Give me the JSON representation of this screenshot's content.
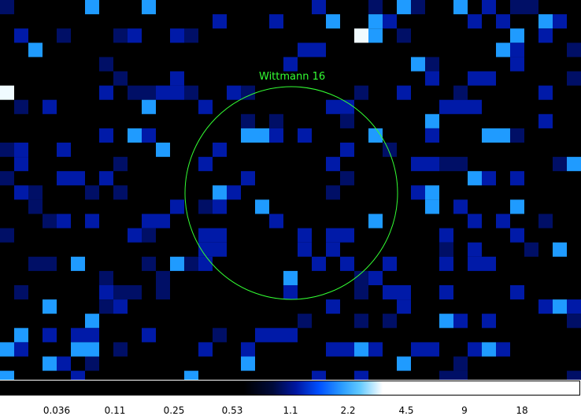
{
  "image": {
    "region": {
      "label": "Wittmann 16",
      "color": "#33ff33"
    }
  },
  "colorbar": {
    "ticks": [
      "0.036",
      "0.11",
      "0.25",
      "0.53",
      "1.1",
      "2.2",
      "4.5",
      "9",
      "18"
    ]
  },
  "colors": {
    "background": "#000000",
    "level_dark": "#000f66",
    "level_mid": "#001aa8",
    "level_bright": "#1f9bff",
    "level_peak": "#f0fbff"
  }
}
